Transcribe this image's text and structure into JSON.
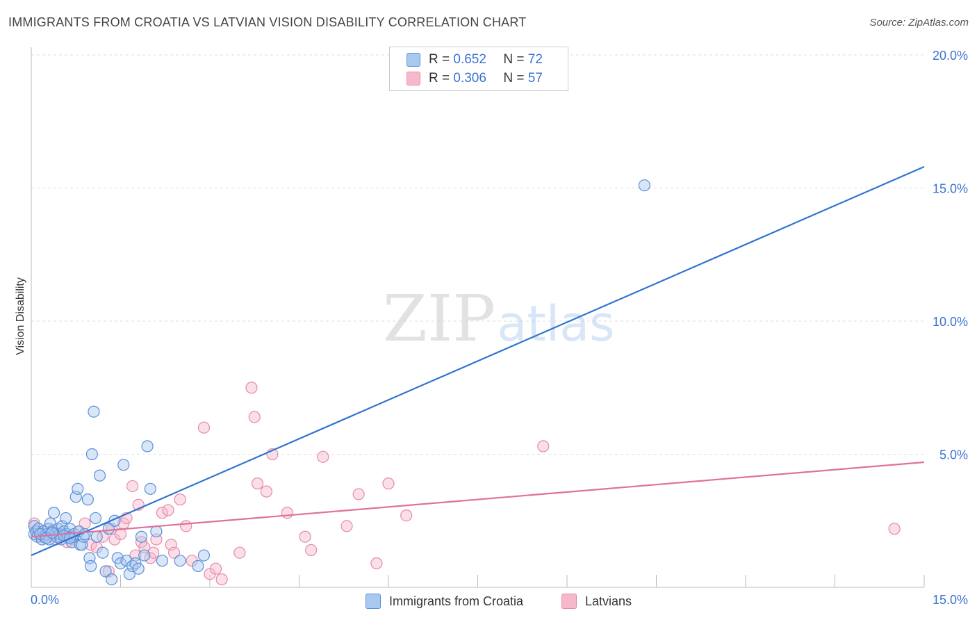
{
  "title": "IMMIGRANTS FROM CROATIA VS LATVIAN VISION DISABILITY CORRELATION CHART",
  "source": "Source: ZipAtlas.com",
  "watermark": {
    "zip": "ZIP",
    "atlas": "atlas"
  },
  "legend_top": [
    {
      "r_label": "R =",
      "r_value": "0.652",
      "n_label": "N =",
      "n_value": "72"
    },
    {
      "r_label": "R =",
      "r_value": "0.306",
      "n_label": "N =",
      "n_value": "57"
    }
  ],
  "legend_bottom": [
    "Immigrants from Croatia",
    "Latvians"
  ],
  "colors": {
    "croatia_fill": "#a9c8f0",
    "croatia_stroke": "#5a8fd8",
    "croatia_line": "#2f74d0",
    "latvian_fill": "#f6b9cc",
    "latvian_stroke": "#e58aa8",
    "latvian_line": "#e0709a",
    "tick_label": "#3a72d4",
    "grid": "#dddddd"
  },
  "chart_data": {
    "type": "scatter",
    "title": "IMMIGRANTS FROM CROATIA VS LATVIAN VISION DISABILITY CORRELATION CHART",
    "xlabel": "",
    "ylabel": "Vision Disability",
    "xlim": [
      0,
      15
    ],
    "ylim": [
      0,
      20
    ],
    "x_tick_labels": [
      {
        "x": 0,
        "label": "0.0%"
      },
      {
        "x": 15,
        "label": "15.0%"
      }
    ],
    "y_tick_labels": [
      {
        "y": 5,
        "label": "5.0%"
      },
      {
        "y": 10,
        "label": "10.0%"
      },
      {
        "y": 15,
        "label": "15.0%"
      },
      {
        "y": 20,
        "label": "20.0%"
      }
    ],
    "legend_position": "top-center",
    "grid": true,
    "series": [
      {
        "name": "Immigrants from Croatia",
        "trendline": {
          "x": [
            0,
            15
          ],
          "y": [
            1.2,
            15.8
          ]
        },
        "points": [
          [
            0.05,
            2.3
          ],
          [
            0.05,
            2.0
          ],
          [
            0.08,
            2.1
          ],
          [
            0.1,
            1.9
          ],
          [
            0.12,
            2.2
          ],
          [
            0.15,
            2.0
          ],
          [
            0.18,
            1.8
          ],
          [
            0.2,
            2.1
          ],
          [
            0.22,
            1.9
          ],
          [
            0.25,
            2.0
          ],
          [
            0.28,
            2.2
          ],
          [
            0.3,
            1.8
          ],
          [
            0.32,
            2.4
          ],
          [
            0.35,
            2.1
          ],
          [
            0.38,
            2.8
          ],
          [
            0.4,
            2.0
          ],
          [
            0.42,
            1.9
          ],
          [
            0.45,
            2.2
          ],
          [
            0.48,
            2.0
          ],
          [
            0.5,
            1.8
          ],
          [
            0.52,
            2.3
          ],
          [
            0.55,
            2.1
          ],
          [
            0.58,
            2.6
          ],
          [
            0.6,
            2.0
          ],
          [
            0.62,
            1.9
          ],
          [
            0.65,
            2.2
          ],
          [
            0.68,
            1.7
          ],
          [
            0.7,
            1.9
          ],
          [
            0.72,
            2.0
          ],
          [
            0.75,
            3.4
          ],
          [
            0.78,
            3.7
          ],
          [
            0.8,
            2.1
          ],
          [
            0.82,
            1.6
          ],
          [
            0.85,
            1.6
          ],
          [
            0.88,
            1.9
          ],
          [
            0.9,
            2.0
          ],
          [
            0.95,
            3.3
          ],
          [
            0.98,
            1.1
          ],
          [
            1.0,
            0.8
          ],
          [
            1.02,
            5.0
          ],
          [
            1.05,
            6.6
          ],
          [
            1.08,
            2.6
          ],
          [
            1.1,
            1.9
          ],
          [
            1.15,
            4.2
          ],
          [
            1.2,
            1.3
          ],
          [
            1.25,
            0.6
          ],
          [
            1.3,
            2.2
          ],
          [
            1.35,
            0.3
          ],
          [
            1.4,
            2.5
          ],
          [
            1.45,
            1.1
          ],
          [
            1.5,
            0.9
          ],
          [
            1.55,
            4.6
          ],
          [
            1.6,
            1.0
          ],
          [
            1.65,
            0.5
          ],
          [
            1.7,
            0.8
          ],
          [
            1.75,
            0.9
          ],
          [
            1.8,
            0.7
          ],
          [
            1.85,
            1.9
          ],
          [
            1.9,
            1.2
          ],
          [
            1.95,
            5.3
          ],
          [
            2.0,
            3.7
          ],
          [
            2.1,
            2.1
          ],
          [
            2.2,
            1.0
          ],
          [
            2.5,
            1.0
          ],
          [
            2.8,
            0.8
          ],
          [
            2.9,
            1.2
          ],
          [
            10.3,
            15.1
          ],
          [
            0.15,
            2.0
          ],
          [
            0.25,
            1.85
          ],
          [
            0.35,
            2.05
          ],
          [
            0.55,
            1.95
          ],
          [
            0.65,
            1.85
          ]
        ]
      },
      {
        "name": "Latvians",
        "trendline": {
          "x": [
            0,
            15
          ],
          "y": [
            1.9,
            4.7
          ]
        },
        "points": [
          [
            0.05,
            2.4
          ],
          [
            0.1,
            2.1
          ],
          [
            0.15,
            1.9
          ],
          [
            0.2,
            2.0
          ],
          [
            0.3,
            2.2
          ],
          [
            0.4,
            1.8
          ],
          [
            0.5,
            1.9
          ],
          [
            0.6,
            1.7
          ],
          [
            0.7,
            1.8
          ],
          [
            0.8,
            2.1
          ],
          [
            0.9,
            2.4
          ],
          [
            1.0,
            1.6
          ],
          [
            1.1,
            1.5
          ],
          [
            1.2,
            1.9
          ],
          [
            1.3,
            0.6
          ],
          [
            1.35,
            2.2
          ],
          [
            1.4,
            1.8
          ],
          [
            1.5,
            2.0
          ],
          [
            1.55,
            2.4
          ],
          [
            1.6,
            2.6
          ],
          [
            1.7,
            3.8
          ],
          [
            1.75,
            1.2
          ],
          [
            1.8,
            3.1
          ],
          [
            1.85,
            1.7
          ],
          [
            1.9,
            1.5
          ],
          [
            2.0,
            1.1
          ],
          [
            2.05,
            1.3
          ],
          [
            2.1,
            1.8
          ],
          [
            2.2,
            2.8
          ],
          [
            2.3,
            2.9
          ],
          [
            2.35,
            1.6
          ],
          [
            2.4,
            1.3
          ],
          [
            2.5,
            3.3
          ],
          [
            2.6,
            2.3
          ],
          [
            2.7,
            1.0
          ],
          [
            2.9,
            6.0
          ],
          [
            3.0,
            0.5
          ],
          [
            3.1,
            0.7
          ],
          [
            3.2,
            0.3
          ],
          [
            3.5,
            1.3
          ],
          [
            3.7,
            7.5
          ],
          [
            3.75,
            6.4
          ],
          [
            3.8,
            3.9
          ],
          [
            3.95,
            3.6
          ],
          [
            4.05,
            5.0
          ],
          [
            4.3,
            2.8
          ],
          [
            4.6,
            1.9
          ],
          [
            4.7,
            1.4
          ],
          [
            4.9,
            4.9
          ],
          [
            5.3,
            2.3
          ],
          [
            5.5,
            3.5
          ],
          [
            5.8,
            0.9
          ],
          [
            6.0,
            3.9
          ],
          [
            6.3,
            2.7
          ],
          [
            8.6,
            5.3
          ],
          [
            14.5,
            2.2
          ],
          [
            0.25,
            1.95
          ]
        ]
      }
    ]
  }
}
